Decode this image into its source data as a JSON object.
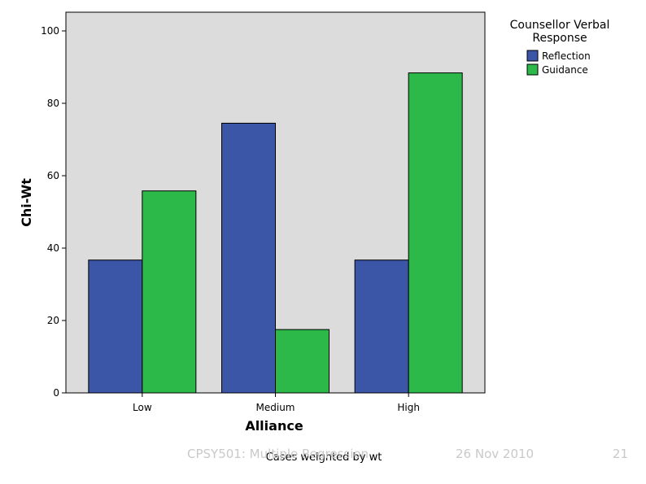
{
  "chart_data": {
    "type": "bar",
    "categories": [
      "Low",
      "Medium",
      "High"
    ],
    "series": [
      {
        "name": "Reflection",
        "values": [
          36.7,
          74.5,
          36.7
        ],
        "color": "#3b55a7"
      },
      {
        "name": "Guidance",
        "values": [
          55.8,
          17.5,
          88.4
        ],
        "color": "#2db84a"
      }
    ],
    "xlabel": "Alliance",
    "ylabel": "Chi-Wt",
    "ylim": [
      0,
      100
    ],
    "yticks": [
      0,
      20,
      40,
      60,
      80,
      100
    ],
    "legend_title": [
      "Counsellor Verbal",
      "Response"
    ],
    "legend_position": "top-right",
    "plot_background": "#dcdcdc",
    "grid": false
  },
  "footnote": "Cases weighted by wt",
  "slide_footer": {
    "course": "CPSY501: Multiple Regression",
    "date": "26 Nov 2010",
    "page": "21"
  }
}
